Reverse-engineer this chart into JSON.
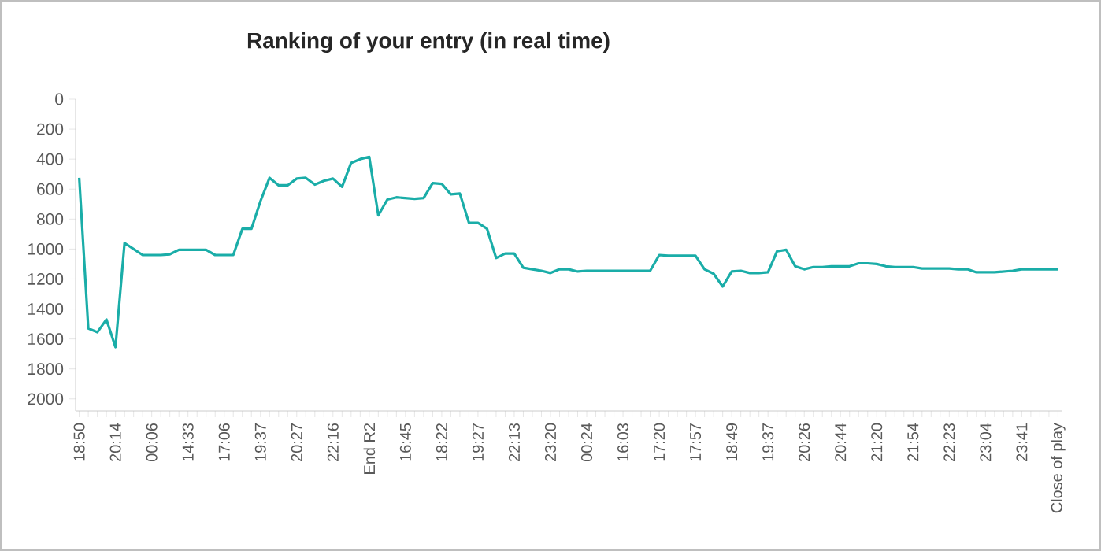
{
  "chart_data": {
    "type": "line",
    "title": "Ranking of your entry (in real time)",
    "categories": [
      "18:50",
      null,
      null,
      null,
      "20:14",
      null,
      null,
      null,
      "00:06",
      null,
      null,
      null,
      "14:33",
      null,
      null,
      null,
      "17:06",
      null,
      null,
      null,
      "19:37",
      null,
      null,
      null,
      "20:27",
      null,
      null,
      null,
      "22:16",
      null,
      null,
      null,
      "End R2",
      null,
      null,
      null,
      "16:45",
      null,
      null,
      null,
      "18:22",
      null,
      null,
      null,
      "19:27",
      null,
      null,
      null,
      "22:13",
      null,
      null,
      null,
      "23:20",
      null,
      null,
      null,
      "00:24",
      null,
      null,
      null,
      "16:03",
      null,
      null,
      null,
      "17:20",
      null,
      null,
      null,
      "17:57",
      null,
      null,
      null,
      "18:49",
      null,
      null,
      null,
      "19:37",
      null,
      null,
      null,
      "20:26",
      null,
      null,
      null,
      "20:44",
      null,
      null,
      null,
      "21:20",
      null,
      null,
      null,
      "21:54",
      null,
      null,
      null,
      "22:23",
      null,
      null,
      null,
      "23:04",
      null,
      null,
      null,
      "23:41",
      null,
      null,
      null,
      "Close of play"
    ],
    "values": [
      525,
      1530,
      1555,
      1470,
      1655,
      960,
      1000,
      1040,
      1040,
      1040,
      1035,
      1005,
      1005,
      1005,
      1005,
      1040,
      1040,
      1040,
      865,
      865,
      680,
      525,
      575,
      575,
      530,
      525,
      570,
      545,
      530,
      585,
      425,
      400,
      385,
      775,
      670,
      655,
      660,
      665,
      660,
      560,
      565,
      635,
      630,
      825,
      825,
      865,
      1060,
      1030,
      1030,
      1125,
      1135,
      1145,
      1160,
      1135,
      1135,
      1150,
      1145,
      1145,
      1145,
      1145,
      1145,
      1145,
      1145,
      1145,
      1040,
      1045,
      1045,
      1045,
      1045,
      1135,
      1165,
      1250,
      1150,
      1145,
      1160,
      1160,
      1155,
      1015,
      1005,
      1115,
      1135,
      1120,
      1120,
      1115,
      1115,
      1115,
      1095,
      1095,
      1100,
      1115,
      1120,
      1120,
      1120,
      1130,
      1130,
      1130,
      1130,
      1135,
      1135,
      1155,
      1155,
      1155,
      1150,
      1145,
      1135,
      1135,
      1135,
      1135,
      1135
    ],
    "color": "#1aada8",
    "line_style": "solid",
    "ylim": [
      2080,
      0
    ],
    "yticks": [
      0,
      200,
      400,
      600,
      800,
      1000,
      1200,
      1400,
      1600,
      1800,
      2000
    ]
  }
}
